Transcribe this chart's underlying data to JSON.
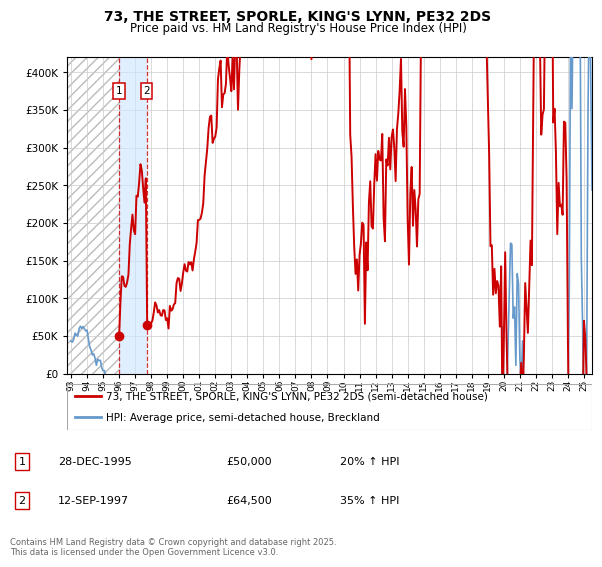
{
  "title": "73, THE STREET, SPORLE, KING'S LYNN, PE32 2DS",
  "subtitle": "Price paid vs. HM Land Registry's House Price Index (HPI)",
  "legend_line1": "73, THE STREET, SPORLE, KING'S LYNN, PE32 2DS (semi-detached house)",
  "legend_line2": "HPI: Average price, semi-detached house, Breckland",
  "footer": "Contains HM Land Registry data © Crown copyright and database right 2025.\nThis data is licensed under the Open Government Licence v3.0.",
  "purchase1_date": "28-DEC-1995",
  "purchase1_price": 50000,
  "purchase1_pct": "20% ↑ HPI",
  "purchase2_date": "12-SEP-1997",
  "purchase2_price": 64500,
  "purchase2_pct": "35% ↑ HPI",
  "purchase1_x": 1995.98,
  "purchase2_x": 1997.71,
  "ylim_min": 0,
  "ylim_max": 420000,
  "xlim_min": 1992.75,
  "xlim_max": 2025.5,
  "property_color": "#cc0000",
  "hpi_color": "#6699cc",
  "vline_color": "#cc0000",
  "marker_color": "#cc0000",
  "background_color": "#ffffff",
  "grid_color": "#cccccc"
}
